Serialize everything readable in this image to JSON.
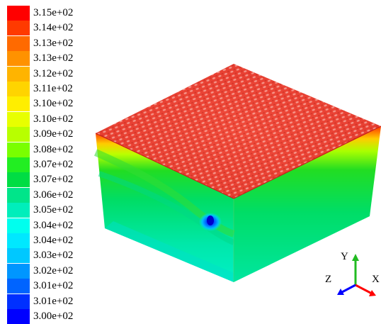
{
  "legend": {
    "labels": [
      "3.15e+02",
      "3.14e+02",
      "3.13e+02",
      "3.13e+02",
      "3.12e+02",
      "3.11e+02",
      "3.10e+02",
      "3.10e+02",
      "3.09e+02",
      "3.08e+02",
      "3.07e+02",
      "3.07e+02",
      "3.06e+02",
      "3.05e+02",
      "3.04e+02",
      "3.04e+02",
      "3.03e+02",
      "3.02e+02",
      "3.01e+02",
      "3.01e+02",
      "3.00e+02"
    ],
    "colors": [
      "#ff0000",
      "#ff3a00",
      "#ff6a00",
      "#ff9200",
      "#ffb400",
      "#ffd400",
      "#ffee00",
      "#e8ff00",
      "#b8ff00",
      "#7aff00",
      "#22ee22",
      "#00dd44",
      "#00e58a",
      "#00eebb",
      "#00ffee",
      "#00e8ff",
      "#00c8ff",
      "#0096ff",
      "#0064ff",
      "#0030ff",
      "#0000ff"
    ]
  },
  "axes": {
    "y": "Y",
    "z": "Z",
    "x": "X"
  },
  "axis_colors": {
    "y": "#22bb22",
    "z": "#0000ff",
    "x": "#ff0000"
  }
}
